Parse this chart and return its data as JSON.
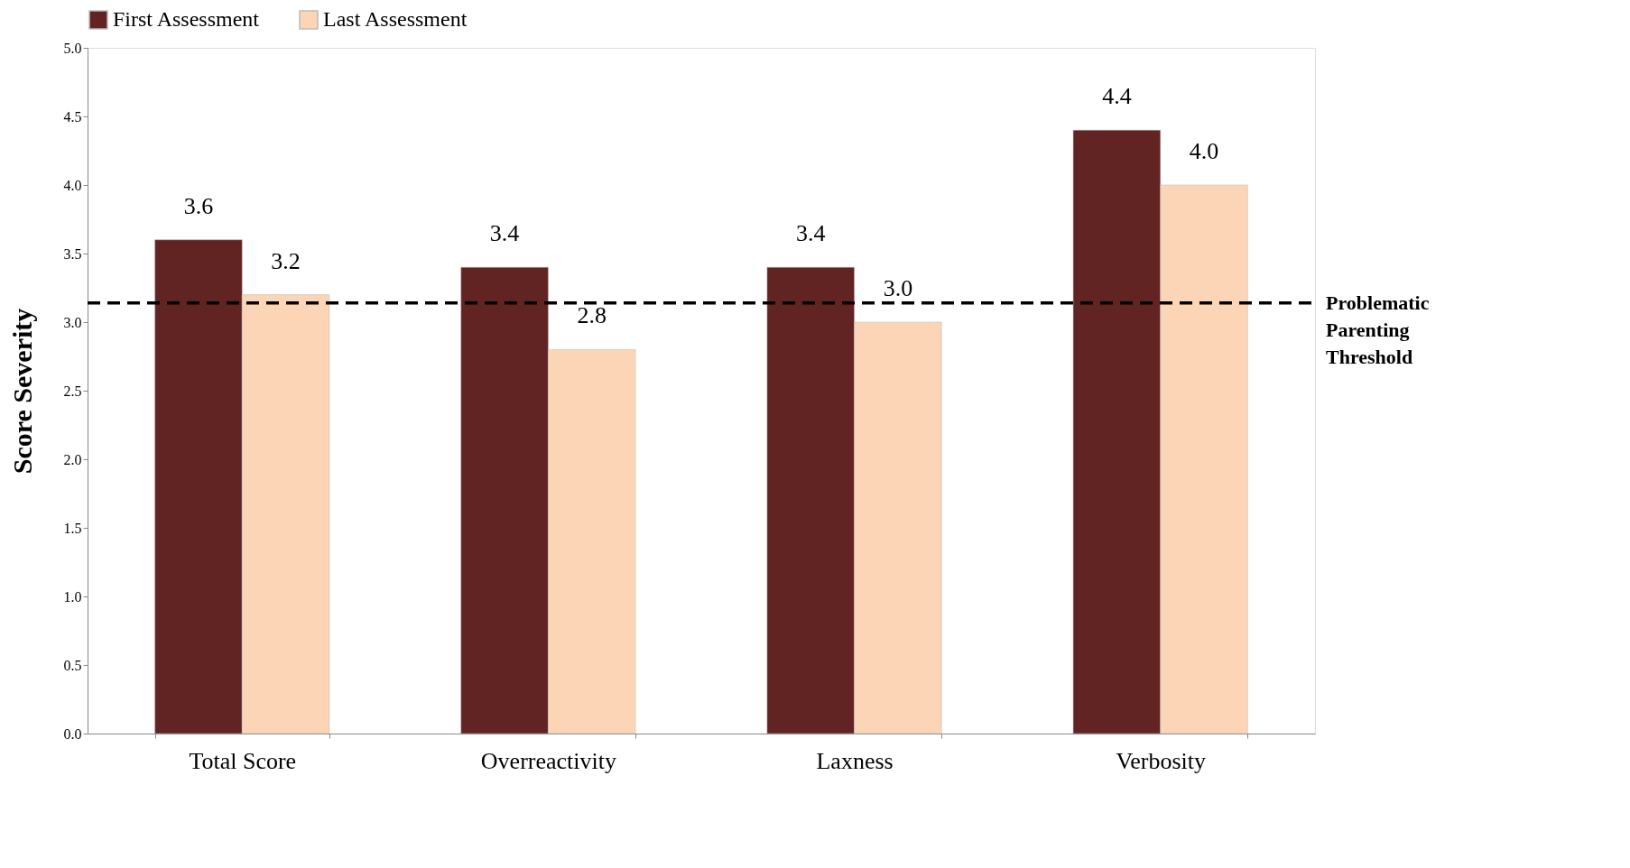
{
  "chart_data": {
    "type": "bar",
    "ylabel": "Score Severity",
    "categories": [
      "Total Score",
      "Overreactivity",
      "Laxness",
      "Verbosity"
    ],
    "series": [
      {
        "name": "First Assessment",
        "color": "#622323",
        "values": [
          3.6,
          3.4,
          3.4,
          4.4
        ],
        "value_labels": [
          "3.6",
          "3.4",
          "3.4",
          "4.4"
        ]
      },
      {
        "name": "Last Assessment",
        "color": "#fbd5b5",
        "values": [
          3.2,
          2.8,
          3.0,
          4.0
        ],
        "value_labels": [
          "3.2",
          "2.8",
          "3.0",
          "4.0"
        ]
      }
    ],
    "ylim": [
      0,
      5
    ],
    "yticks": [
      {
        "value": 0,
        "label": "0.0"
      },
      {
        "value": 0.5,
        "label": "0.5"
      },
      {
        "value": 1,
        "label": "1.0"
      },
      {
        "value": 1.5,
        "label": "1.5"
      },
      {
        "value": 2,
        "label": "2.0"
      },
      {
        "value": 2.5,
        "label": "2.5"
      },
      {
        "value": 3,
        "label": "3.0"
      },
      {
        "value": 3.5,
        "label": "3.5"
      },
      {
        "value": 4,
        "label": "4.0"
      },
      {
        "value": 4.5,
        "label": "4.5"
      },
      {
        "value": 5,
        "label": "5.0"
      }
    ],
    "ref_lines": [
      {
        "axis": "y",
        "value": 3.14,
        "label": "Problematic\nParenting\nThreshold",
        "color": "#000000",
        "line_style": "dashed"
      }
    ],
    "legend": "top",
    "grid": false
  }
}
